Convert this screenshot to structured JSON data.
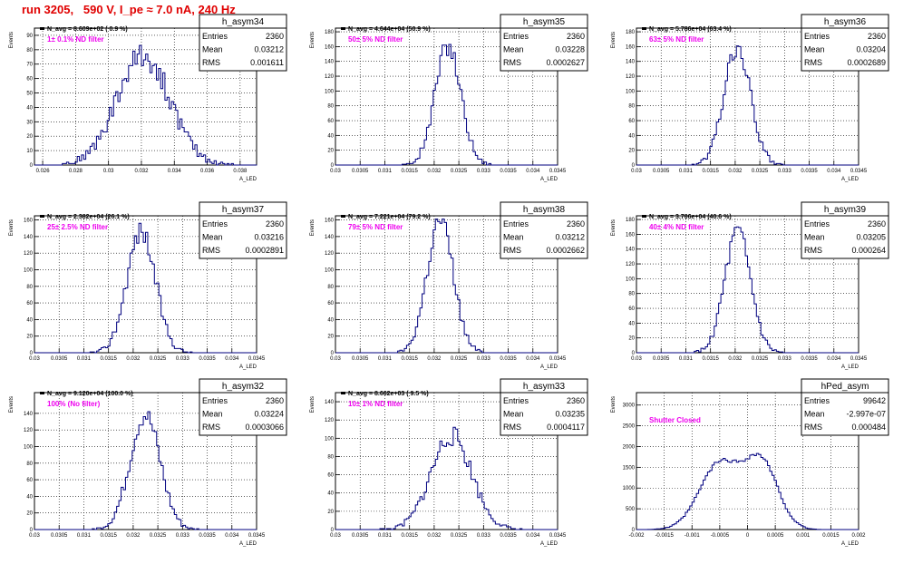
{
  "header": {
    "run_title": "run 3205,   590 V, I_pe ≈ 7.0 nA, 240 Hz"
  },
  "labels": {
    "y_axis": "Events",
    "x_axis": "A_LED",
    "entries": "Entries",
    "mean": "Mean",
    "rms": "RMS"
  },
  "colors": {
    "histogram": "#00007f",
    "annotation": "#ee00ee",
    "title": "#e00000"
  },
  "chart_data": [
    {
      "type": "bar",
      "name": "h_asym34",
      "navg": "N_avg = 8.609e+02 ( 0.9 %)",
      "filter": "1± 0.1% ND filter",
      "stats": {
        "entries": "2360",
        "mean": "0.03212",
        "rms": "0.001611"
      },
      "xlim": [
        0.0255,
        0.039
      ],
      "ylim": [
        0,
        95
      ],
      "xticks": [
        0.026,
        0.028,
        0.03,
        0.032,
        0.034,
        0.036,
        0.038
      ],
      "xtick_labels": [
        "0.026",
        "0.028",
        "0.03",
        "0.032",
        "0.034",
        "0.036",
        "0.038"
      ],
      "yticks": [
        0,
        10,
        20,
        30,
        40,
        50,
        60,
        70,
        80,
        90
      ],
      "hist": {
        "kind": "gauss",
        "mean": 0.03212,
        "rms": 0.001611,
        "entries": 2360,
        "bw": 0.00013,
        "seed": 34
      }
    },
    {
      "type": "bar",
      "name": "h_asym35",
      "navg": "N_avg = 4.644e+04 (50.9 %)",
      "filter": "50± 5% ND filter",
      "stats": {
        "entries": "2360",
        "mean": "0.03228",
        "rms": "0.0002627"
      },
      "xlim": [
        0.03,
        0.0345
      ],
      "ylim": [
        0,
        185
      ],
      "xticks": [
        0.03,
        0.0305,
        0.031,
        0.0315,
        0.032,
        0.0325,
        0.033,
        0.0335,
        0.034,
        0.0345
      ],
      "xtick_labels": [
        "0.03",
        "0.0305",
        "0.031",
        "0.0315",
        "0.032",
        "0.0325",
        "0.033",
        "0.0335",
        "0.034",
        "0.0345"
      ],
      "yticks": [
        0,
        20,
        40,
        60,
        80,
        100,
        120,
        140,
        160,
        180
      ],
      "hist": {
        "kind": "gauss",
        "mean": 0.03228,
        "rms": 0.0002627,
        "entries": 2360,
        "bw": 4.5e-05,
        "seed": 35
      }
    },
    {
      "type": "bar",
      "name": "h_asym36",
      "navg": "N_avg = 5.786e+04 (63.4 %)",
      "filter": "63± 5% ND filter",
      "stats": {
        "entries": "2360",
        "mean": "0.03204",
        "rms": "0.0002689"
      },
      "xlim": [
        0.03,
        0.0345
      ],
      "ylim": [
        0,
        185
      ],
      "xticks": [
        0.03,
        0.0305,
        0.031,
        0.0315,
        0.032,
        0.0325,
        0.033,
        0.0335,
        0.034,
        0.0345
      ],
      "xtick_labels": [
        "0.03",
        "0.0305",
        "0.031",
        "0.0315",
        "0.032",
        "0.0325",
        "0.033",
        "0.0335",
        "0.034",
        "0.0345"
      ],
      "yticks": [
        0,
        20,
        40,
        60,
        80,
        100,
        120,
        140,
        160,
        180
      ],
      "hist": {
        "kind": "gauss",
        "mean": 0.03204,
        "rms": 0.0002689,
        "entries": 2360,
        "bw": 4.5e-05,
        "seed": 36
      }
    },
    {
      "type": "bar",
      "name": "h_asym37",
      "navg": "N_avg = 2.382e+04 (26.1 %)",
      "filter": "25± 2.5% ND filter",
      "stats": {
        "entries": "2360",
        "mean": "0.03216",
        "rms": "0.0002891"
      },
      "xlim": [
        0.03,
        0.0345
      ],
      "ylim": [
        0,
        165
      ],
      "xticks": [
        0.03,
        0.0305,
        0.031,
        0.0315,
        0.032,
        0.0325,
        0.033,
        0.0335,
        0.034,
        0.0345
      ],
      "xtick_labels": [
        "0.03",
        "0.0305",
        "0.031",
        "0.0315",
        "0.032",
        "0.0325",
        "0.033",
        "0.0335",
        "0.034",
        "0.0345"
      ],
      "yticks": [
        0,
        20,
        40,
        60,
        80,
        100,
        120,
        140,
        160
      ],
      "hist": {
        "kind": "gauss",
        "mean": 0.03216,
        "rms": 0.0002891,
        "entries": 2360,
        "bw": 4.5e-05,
        "seed": 37
      }
    },
    {
      "type": "bar",
      "name": "h_asym38",
      "navg": "N_avg = 7.221e+04 (79.2 %)",
      "filter": "79± 5% ND filter",
      "stats": {
        "entries": "2360",
        "mean": "0.03212",
        "rms": "0.0002662"
      },
      "xlim": [
        0.03,
        0.0345
      ],
      "ylim": [
        0,
        165
      ],
      "xticks": [
        0.03,
        0.0305,
        0.031,
        0.0315,
        0.032,
        0.0325,
        0.033,
        0.0335,
        0.034,
        0.0345
      ],
      "xtick_labels": [
        "0.03",
        "0.0305",
        "0.031",
        "0.0315",
        "0.032",
        "0.0325",
        "0.033",
        "0.0335",
        "0.034",
        "0.0345"
      ],
      "yticks": [
        0,
        20,
        40,
        60,
        80,
        100,
        120,
        140,
        160
      ],
      "hist": {
        "kind": "gauss",
        "mean": 0.03212,
        "rms": 0.0002662,
        "entries": 2360,
        "bw": 4.5e-05,
        "seed": 38
      }
    },
    {
      "type": "bar",
      "name": "h_asym39",
      "navg": "N_avg = 3.706e+04 (40.6 %)",
      "filter": "40± 4% ND filter",
      "stats": {
        "entries": "2360",
        "mean": "0.03205",
        "rms": "0.000264"
      },
      "xlim": [
        0.03,
        0.0345
      ],
      "ylim": [
        0,
        185
      ],
      "xticks": [
        0.03,
        0.0305,
        0.031,
        0.0315,
        0.032,
        0.0325,
        0.033,
        0.0335,
        0.034,
        0.0345
      ],
      "xtick_labels": [
        "0.03",
        "0.0305",
        "0.031",
        "0.0315",
        "0.032",
        "0.0325",
        "0.033",
        "0.0335",
        "0.034",
        "0.0345"
      ],
      "yticks": [
        0,
        20,
        40,
        60,
        80,
        100,
        120,
        140,
        160,
        180
      ],
      "hist": {
        "kind": "gauss",
        "mean": 0.03205,
        "rms": 0.000264,
        "entries": 2360,
        "bw": 4.5e-05,
        "seed": 39
      }
    },
    {
      "type": "bar",
      "name": "h_asym32",
      "navg": "N_avg = 9.120e+04 (100.0 %)",
      "filter": "100% (No filter)",
      "stats": {
        "entries": "2360",
        "mean": "0.03224",
        "rms": "0.0003066"
      },
      "xlim": [
        0.03,
        0.0345
      ],
      "ylim": [
        0,
        165
      ],
      "xticks": [
        0.03,
        0.0305,
        0.031,
        0.0315,
        0.032,
        0.0325,
        0.033,
        0.0335,
        0.034,
        0.0345
      ],
      "xtick_labels": [
        "0.03",
        "0.0305",
        "0.031",
        "0.0315",
        "0.032",
        "0.0325",
        "0.033",
        "0.0335",
        "0.034",
        "0.0345"
      ],
      "yticks": [
        0,
        20,
        40,
        60,
        80,
        100,
        120,
        140
      ],
      "hist": {
        "kind": "gauss",
        "mean": 0.03224,
        "rms": 0.0003066,
        "entries": 2360,
        "bw": 4.5e-05,
        "seed": 32
      }
    },
    {
      "type": "bar",
      "name": "h_asym33",
      "navg": "N_avg = 8.662e+03 ( 9.5 %)",
      "filter": "10± 1% ND filter",
      "stats": {
        "entries": "2360",
        "mean": "0.03235",
        "rms": "0.0004117"
      },
      "xlim": [
        0.03,
        0.0345
      ],
      "ylim": [
        0,
        150
      ],
      "xticks": [
        0.03,
        0.0305,
        0.031,
        0.0315,
        0.032,
        0.0325,
        0.033,
        0.0335,
        0.034,
        0.0345
      ],
      "xtick_labels": [
        "0.03",
        "0.0305",
        "0.031",
        "0.0315",
        "0.032",
        "0.0325",
        "0.033",
        "0.0335",
        "0.034",
        "0.0345"
      ],
      "yticks": [
        0,
        20,
        40,
        60,
        80,
        100,
        120,
        140
      ],
      "hist": {
        "kind": "gauss",
        "mean": 0.03235,
        "rms": 0.0004117,
        "entries": 2360,
        "bw": 4.5e-05,
        "seed": 33
      }
    },
    {
      "type": "bar",
      "name": "hPed_asym",
      "navg": "",
      "filter": "Shutter Closed",
      "stats": {
        "entries": "99642",
        "mean": "-2.997e-07",
        "rms": "0.000484"
      },
      "xlim": [
        -0.002,
        0.002
      ],
      "ylim": [
        0,
        3300
      ],
      "xticks": [
        -0.002,
        -0.0015,
        -0.001,
        -0.0005,
        0,
        0.0005,
        0.001,
        0.0015,
        0.002
      ],
      "xtick_labels": [
        "-0.002",
        "-0.0015",
        "-0.001",
        "-0.0005",
        "0",
        "0.0005",
        "0.001",
        "0.0015",
        "0.002"
      ],
      "yticks": [
        0,
        500,
        1000,
        1500,
        2000,
        2500,
        3000
      ],
      "hist": {
        "kind": "ped",
        "mean": 0,
        "rms": 0.000484,
        "entries": 99642,
        "bw": 4e-05,
        "seed": 99
      }
    }
  ]
}
